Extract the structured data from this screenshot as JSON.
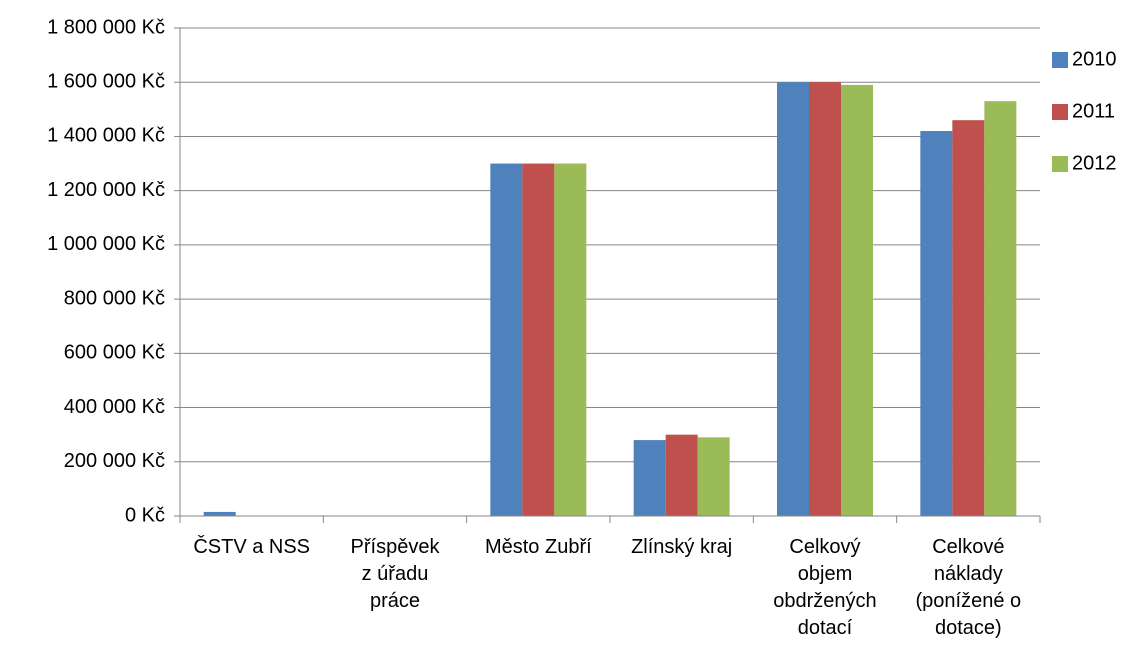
{
  "chart_data": {
    "type": "bar",
    "categories": [
      "ČSTV a NSS",
      "Příspěvek\nz úřadu\npráce",
      "Město Zubří",
      "Zlínský kraj",
      "Celkový\nobjem\nobdržených\ndotací",
      "Celkové\nnáklady\n(ponížené o\ndotace)"
    ],
    "series": [
      {
        "name": "2010",
        "color": "#4f81bd",
        "values": [
          15000,
          0,
          1300000,
          280000,
          1600000,
          1420000
        ]
      },
      {
        "name": "2011",
        "color": "#c0504d",
        "values": [
          0,
          0,
          1300000,
          300000,
          1600000,
          1460000
        ]
      },
      {
        "name": "2012",
        "color": "#9bbb59",
        "values": [
          0,
          0,
          1300000,
          290000,
          1590000,
          1530000
        ]
      }
    ],
    "ylim": [
      0,
      1800000
    ],
    "yticks": [
      {
        "value": 0,
        "label": "0 Kč"
      },
      {
        "value": 200000,
        "label": "200 000 Kč"
      },
      {
        "value": 400000,
        "label": "400 000 Kč"
      },
      {
        "value": 600000,
        "label": "600 000 Kč"
      },
      {
        "value": 800000,
        "label": "800 000 Kč"
      },
      {
        "value": 1000000,
        "label": "1 000 000 Kč"
      },
      {
        "value": 1200000,
        "label": "1 200 000 Kč"
      },
      {
        "value": 1400000,
        "label": "1 400 000 Kč"
      },
      {
        "value": 1600000,
        "label": "1 600 000 Kč"
      },
      {
        "value": 1800000,
        "label": "1 800 000 Kč"
      }
    ],
    "grid": true,
    "legend": "right"
  }
}
